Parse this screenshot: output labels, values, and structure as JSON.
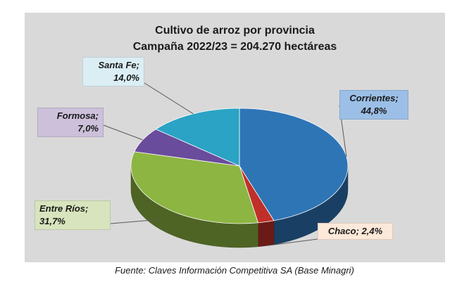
{
  "chart_data": {
    "type": "pie",
    "title": "Cultivo de arroz por provincia",
    "subtitle": "Campaña  2022/23 = 204.270 hectáreas",
    "slices": [
      {
        "name": "Corrientes",
        "value": 44.8,
        "label": "44,8%",
        "color": "#2e75b6"
      },
      {
        "name": "Chaco",
        "value": 2.4,
        "label": "2,4%",
        "color": "#c0302a"
      },
      {
        "name": "Entre Ríos",
        "value": 31.7,
        "label": "31,7%",
        "color": "#8db542"
      },
      {
        "name": "Formosa",
        "value": 7.0,
        "label": "7,0%",
        "color": "#6a4c9c"
      },
      {
        "name": "Santa Fe",
        "value": 14.0,
        "label": "14,0%",
        "color": "#2aa3c4"
      }
    ],
    "source": "Fuente: Claves Información Competitiva SA (Base Minagri)"
  }
}
